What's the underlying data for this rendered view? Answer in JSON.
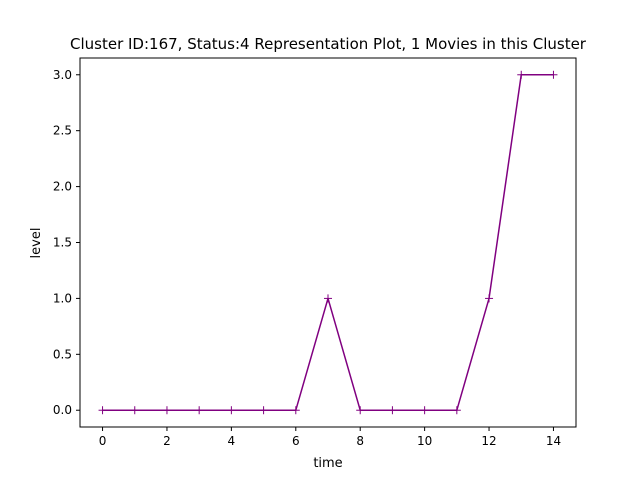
{
  "chart_data": {
    "type": "line",
    "title": "Cluster ID:167, Status:4 Representation Plot, 1 Movies in this Cluster",
    "xlabel": "time",
    "ylabel": "level",
    "xlim": [
      -0.7,
      14.7
    ],
    "ylim": [
      -0.15,
      3.15
    ],
    "xticks": [
      0,
      2,
      4,
      6,
      8,
      10,
      12,
      14
    ],
    "xtick_labels": [
      "0",
      "2",
      "4",
      "6",
      "8",
      "10",
      "12",
      "14"
    ],
    "yticks": [
      0.0,
      0.5,
      1.0,
      1.5,
      2.0,
      2.5,
      3.0
    ],
    "ytick_labels": [
      "0.0",
      "0.5",
      "1.0",
      "1.5",
      "2.0",
      "2.5",
      "3.0"
    ],
    "grid": false,
    "legend": "none",
    "series": [
      {
        "x": [
          0,
          1,
          2,
          3,
          4,
          5,
          6,
          7,
          8,
          9,
          10,
          11,
          12,
          13,
          14
        ],
        "values": [
          0,
          0,
          0,
          0,
          0,
          0,
          0,
          1,
          0,
          0,
          0,
          0,
          1,
          3,
          3
        ],
        "color": "#800080",
        "marker": "plus"
      }
    ]
  }
}
